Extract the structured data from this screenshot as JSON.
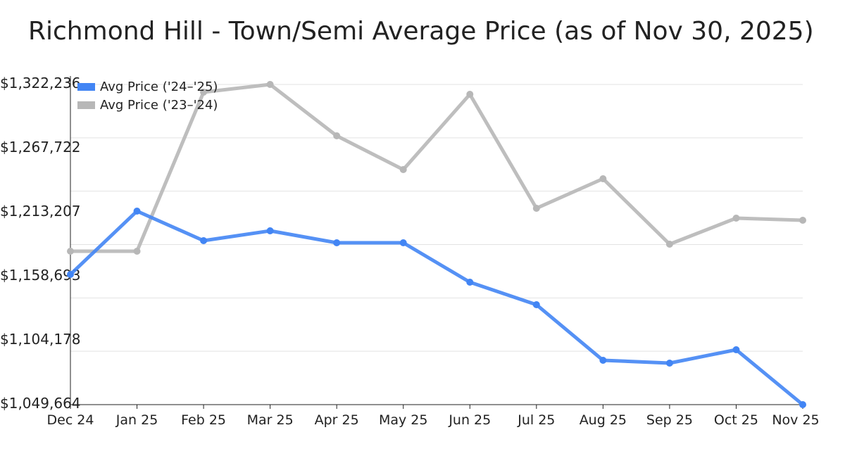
{
  "chart_data": {
    "type": "line",
    "title": "Richmond Hill - Town/Semi Average Price (as of Nov 30, 2025)",
    "xlabel": "",
    "ylabel": "",
    "categories": [
      "Dec 24",
      "Jan 25",
      "Feb 25",
      "Mar 25",
      "Apr 25",
      "May 25",
      "Jun 25",
      "Jul 25",
      "Aug 25",
      "Sep 25",
      "Oct 25",
      "Nov 25"
    ],
    "ylim": [
      1049664,
      1322236
    ],
    "yticks": [
      "$1,322,236",
      "$1,267,722",
      "$1,213,207",
      "$1,158,693",
      "$1,104,178",
      "$1,049,664"
    ],
    "ytick_values": [
      1322236,
      1267722,
      1213207,
      1158693,
      1104178,
      1049664
    ],
    "grid": true,
    "legend_position": "top-left",
    "series": [
      {
        "name": "Avg Price ('24–'25)",
        "color": "#4285f4",
        "values": [
          1160490,
          1214406,
          1189245,
          1197632,
          1187449,
          1187449,
          1153901,
          1134731,
          1087405,
          1085009,
          1096391,
          1049664
        ]
      },
      {
        "name": "Avg Price ('23–'24)",
        "color": "#b7b7b7",
        "values": [
          1180260,
          1180260,
          1315647,
          1322236,
          1278505,
          1249750,
          1313850,
          1216802,
          1241963,
          1186250,
          1208415,
          1206618
        ]
      }
    ]
  }
}
